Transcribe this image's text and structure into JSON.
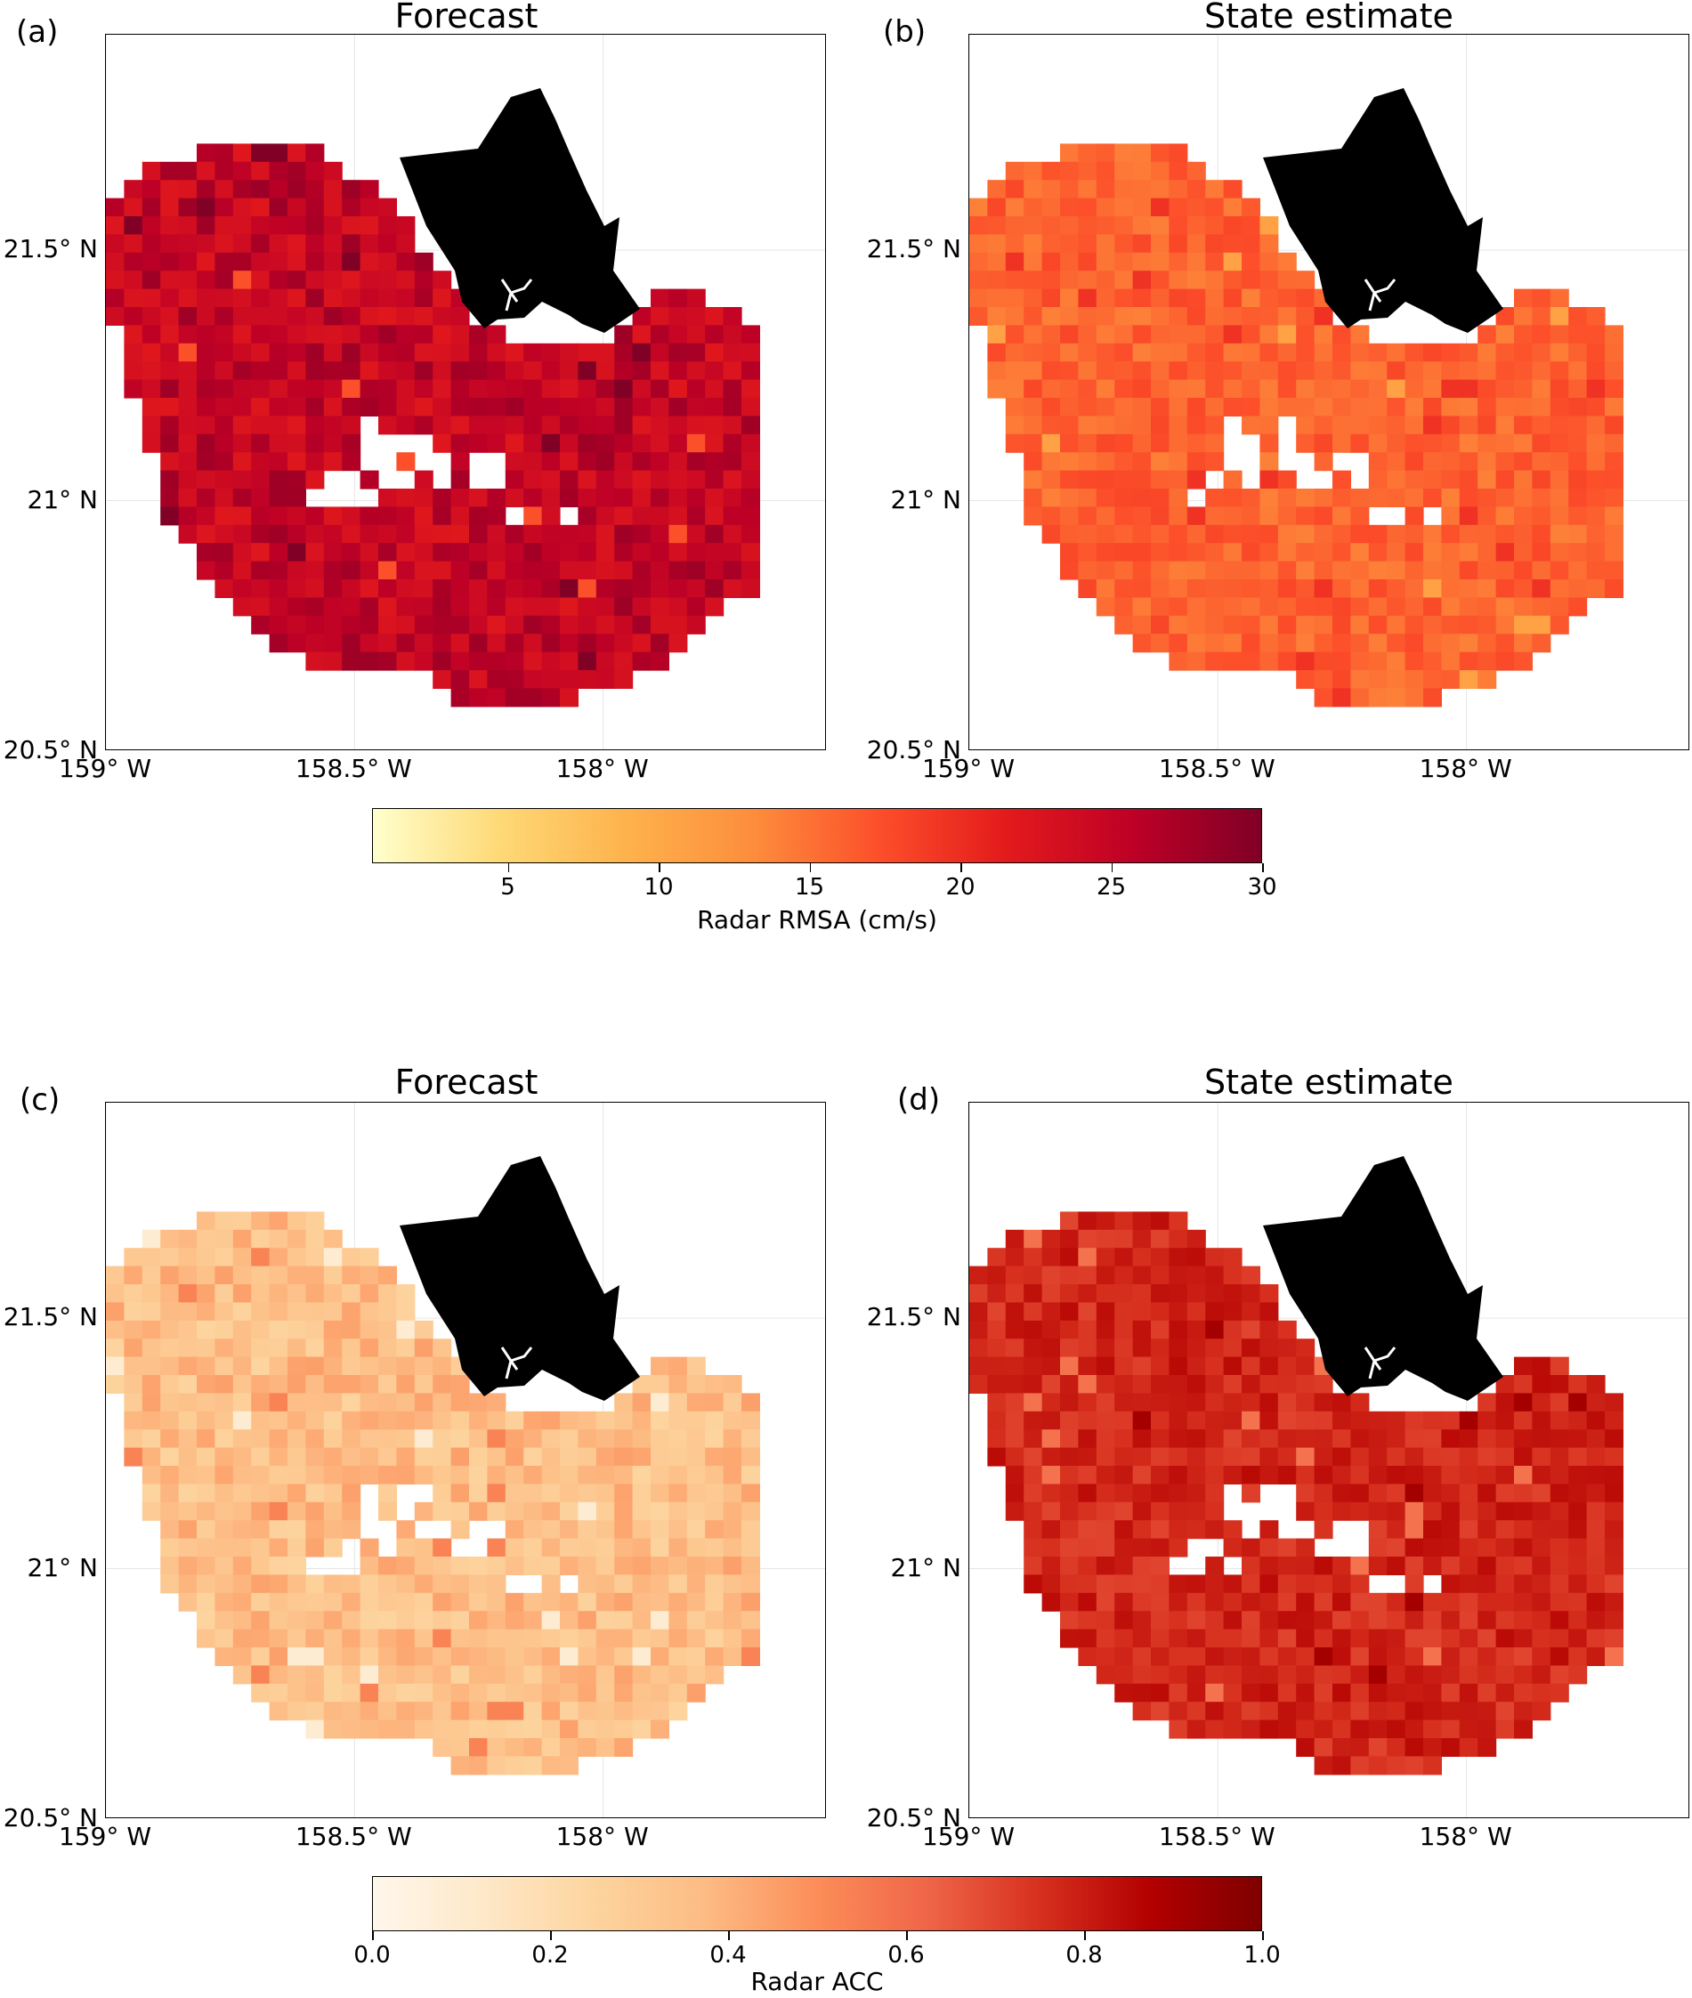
{
  "chart_data": [
    {
      "type": "heatmap",
      "panel_label": "(a)",
      "title": "Forecast",
      "metric": "rmsa",
      "value_range": [
        22,
        28
      ],
      "colorbar": "colorbar_rmsa"
    },
    {
      "type": "heatmap",
      "panel_label": "(b)",
      "title": "State estimate",
      "metric": "rmsa",
      "value_range": [
        14,
        18
      ],
      "colorbar": "colorbar_rmsa"
    },
    {
      "type": "heatmap",
      "panel_label": "(c)",
      "title": "Forecast",
      "metric": "acc",
      "value_range": [
        0.25,
        0.45
      ],
      "colorbar": "colorbar_acc"
    },
    {
      "type": "heatmap",
      "panel_label": "(d)",
      "title": "State estimate",
      "metric": "acc",
      "value_range": [
        0.7,
        0.85
      ],
      "colorbar": "colorbar_acc"
    }
  ],
  "axes": {
    "xticks": [
      "159° W",
      "158.5° W",
      "158° W"
    ],
    "yticks": [
      "21.5° N",
      "21° N",
      "20.5° N"
    ],
    "xlim": [
      -159.0,
      -157.55
    ],
    "ylim": [
      20.5,
      21.93
    ],
    "xtick_values": [
      -159.0,
      -158.5,
      -158.0
    ],
    "ytick_values": [
      21.5,
      21.0,
      20.5
    ]
  },
  "colorbar_rmsa": {
    "label": "Radar RMSA (cm/s)",
    "ticks": [
      "5",
      "10",
      "15",
      "20",
      "25",
      "30"
    ],
    "tick_values": [
      5,
      10,
      15,
      20,
      25,
      30
    ],
    "range": [
      0.5,
      30
    ],
    "cmap": "YlOrRd",
    "colors": [
      "#ffffcc",
      "#fed976",
      "#feb24c",
      "#fd8d3c",
      "#fc4e2a",
      "#e31a1c",
      "#bd0026",
      "#800026"
    ]
  },
  "colorbar_acc": {
    "label": "Radar ACC",
    "ticks": [
      "0.0",
      "0.2",
      "0.4",
      "0.6",
      "0.8",
      "1.0"
    ],
    "tick_values": [
      0.0,
      0.2,
      0.4,
      0.6,
      0.8,
      1.0
    ],
    "range": [
      0.0,
      1.0
    ],
    "cmap": "OrRd",
    "colors": [
      "#fff7ec",
      "#fee8c8",
      "#fdd49e",
      "#fdbb84",
      "#fc8d59",
      "#ef6548",
      "#d7301f",
      "#b30000",
      "#7f0000"
    ]
  }
}
